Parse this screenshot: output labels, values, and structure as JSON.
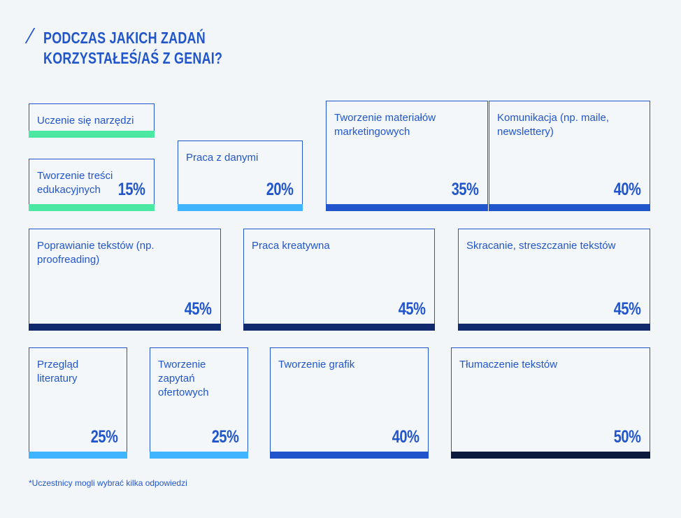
{
  "title": {
    "line1": "PODCZAS JAKICH ZADAŃ",
    "line2": "KORZYSTAŁEŚ/AŚ Z GENAI?"
  },
  "colors": {
    "green": "#4be8a4",
    "light_blue": "#40b4ff",
    "blue": "#2155cc",
    "navy": "#102a6e",
    "dark": "#0c1a3e"
  },
  "items": [
    {
      "label": "Uczenie się narzędzi",
      "percent": ""
    },
    {
      "label": "Tworzenie treści edukacyjnych",
      "percent": "15%"
    },
    {
      "label": "Praca z danymi",
      "percent": "20%"
    },
    {
      "label": "Tworzenie materiałów marketingowych",
      "percent": "35%"
    },
    {
      "label": "Komunikacja (np. maile, newslettery)",
      "percent": "40%"
    },
    {
      "label": "Poprawianie tekstów (np. proofreading)",
      "percent": "45%"
    },
    {
      "label": "Praca kreatywna",
      "percent": "45%"
    },
    {
      "label": "Skracanie, streszczanie tekstów",
      "percent": "45%"
    },
    {
      "label": "Przegląd literatury",
      "percent": "25%"
    },
    {
      "label": "Tworzenie zapytań ofertowych",
      "percent": "25%"
    },
    {
      "label": "Tworzenie grafik",
      "percent": "40%"
    },
    {
      "label": "Tłumaczenie tekstów",
      "percent": "50%"
    }
  ],
  "footnote": "*Uczestnicy mogli wybrać kilka odpowiedzi"
}
